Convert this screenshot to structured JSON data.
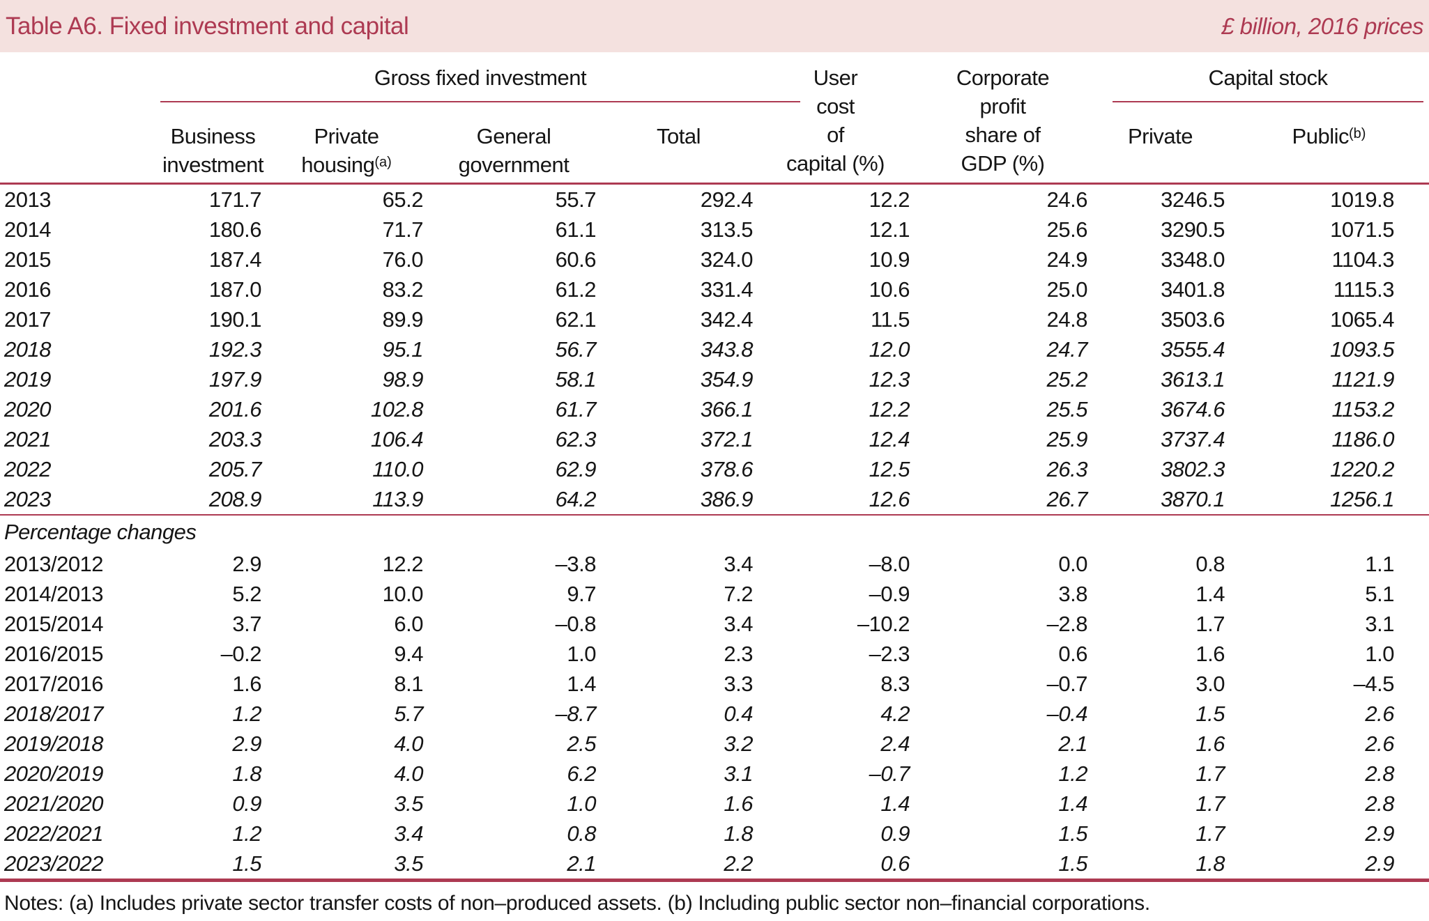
{
  "colors": {
    "crimson": "#ad3a52",
    "pink": "#f4e1df",
    "text": "#151515"
  },
  "banner": {
    "title": "Table A6. Fixed investment and capital",
    "units": "£ billion, 2016 prices"
  },
  "header": {
    "gfi_group": "Gross fixed investment",
    "capital_stock_group": "Capital stock",
    "user_cost_lines": [
      "User",
      "cost",
      "of",
      "capital (%)"
    ],
    "corporate_lines": [
      "Corporate",
      "profit",
      "share of",
      "GDP (%)"
    ],
    "business_lines": [
      "Business",
      "investment"
    ],
    "private_housing_lines": [
      "Private",
      "housing"
    ],
    "private_housing_sup": "(a)",
    "general_government_lines": [
      "General",
      "government"
    ],
    "total": "Total",
    "private": "Private",
    "public": "Public",
    "public_sup": "(b)"
  },
  "table": {
    "section_label": "Percentage changes",
    "year_rows": [
      {
        "label": "2013",
        "italic": false,
        "values": [
          "171.7",
          "65.2",
          "55.7",
          "292.4",
          "12.2",
          "24.6",
          "3246.5",
          "1019.8"
        ]
      },
      {
        "label": "2014",
        "italic": false,
        "values": [
          "180.6",
          "71.7",
          "61.1",
          "313.5",
          "12.1",
          "25.6",
          "3290.5",
          "1071.5"
        ]
      },
      {
        "label": "2015",
        "italic": false,
        "values": [
          "187.4",
          "76.0",
          "60.6",
          "324.0",
          "10.9",
          "24.9",
          "3348.0",
          "1104.3"
        ]
      },
      {
        "label": "2016",
        "italic": false,
        "values": [
          "187.0",
          "83.2",
          "61.2",
          "331.4",
          "10.6",
          "25.0",
          "3401.8",
          "1115.3"
        ]
      },
      {
        "label": "2017",
        "italic": false,
        "values": [
          "190.1",
          "89.9",
          "62.1",
          "342.4",
          "11.5",
          "24.8",
          "3503.6",
          "1065.4"
        ]
      },
      {
        "label": "2018",
        "italic": true,
        "values": [
          "192.3",
          "95.1",
          "56.7",
          "343.8",
          "12.0",
          "24.7",
          "3555.4",
          "1093.5"
        ]
      },
      {
        "label": "2019",
        "italic": true,
        "values": [
          "197.9",
          "98.9",
          "58.1",
          "354.9",
          "12.3",
          "25.2",
          "3613.1",
          "1121.9"
        ]
      },
      {
        "label": "2020",
        "italic": true,
        "values": [
          "201.6",
          "102.8",
          "61.7",
          "366.1",
          "12.2",
          "25.5",
          "3674.6",
          "1153.2"
        ]
      },
      {
        "label": "2021",
        "italic": true,
        "values": [
          "203.3",
          "106.4",
          "62.3",
          "372.1",
          "12.4",
          "25.9",
          "3737.4",
          "1186.0"
        ]
      },
      {
        "label": "2022",
        "italic": true,
        "values": [
          "205.7",
          "110.0",
          "62.9",
          "378.6",
          "12.5",
          "26.3",
          "3802.3",
          "1220.2"
        ]
      },
      {
        "label": "2023",
        "italic": true,
        "values": [
          "208.9",
          "113.9",
          "64.2",
          "386.9",
          "12.6",
          "26.7",
          "3870.1",
          "1256.1"
        ]
      }
    ],
    "pct_rows": [
      {
        "label": "2013/2012",
        "italic": false,
        "values": [
          "2.9",
          "12.2",
          "–3.8",
          "3.4",
          "–8.0",
          "0.0",
          "0.8",
          "1.1"
        ]
      },
      {
        "label": "2014/2013",
        "italic": false,
        "values": [
          "5.2",
          "10.0",
          "9.7",
          "7.2",
          "–0.9",
          "3.8",
          "1.4",
          "5.1"
        ]
      },
      {
        "label": "2015/2014",
        "italic": false,
        "values": [
          "3.7",
          "6.0",
          "–0.8",
          "3.4",
          "–10.2",
          "–2.8",
          "1.7",
          "3.1"
        ]
      },
      {
        "label": "2016/2015",
        "italic": false,
        "values": [
          "–0.2",
          "9.4",
          "1.0",
          "2.3",
          "–2.3",
          "0.6",
          "1.6",
          "1.0"
        ]
      },
      {
        "label": "2017/2016",
        "italic": false,
        "values": [
          "1.6",
          "8.1",
          "1.4",
          "3.3",
          "8.3",
          "–0.7",
          "3.0",
          "–4.5"
        ]
      },
      {
        "label": "2018/2017",
        "italic": true,
        "values": [
          "1.2",
          "5.7",
          "–8.7",
          "0.4",
          "4.2",
          "–0.4",
          "1.5",
          "2.6"
        ]
      },
      {
        "label": "2019/2018",
        "italic": true,
        "values": [
          "2.9",
          "4.0",
          "2.5",
          "3.2",
          "2.4",
          "2.1",
          "1.6",
          "2.6"
        ]
      },
      {
        "label": "2020/2019",
        "italic": true,
        "values": [
          "1.8",
          "4.0",
          "6.2",
          "3.1",
          "–0.7",
          "1.2",
          "1.7",
          "2.8"
        ]
      },
      {
        "label": "2021/2020",
        "italic": true,
        "values": [
          "0.9",
          "3.5",
          "1.0",
          "1.6",
          "1.4",
          "1.4",
          "1.7",
          "2.8"
        ]
      },
      {
        "label": "2022/2021",
        "italic": true,
        "values": [
          "1.2",
          "3.4",
          "0.8",
          "1.8",
          "0.9",
          "1.5",
          "1.7",
          "2.9"
        ]
      },
      {
        "label": "2023/2022",
        "italic": true,
        "values": [
          "1.5",
          "3.5",
          "2.1",
          "2.2",
          "0.6",
          "1.5",
          "1.8",
          "2.9"
        ]
      }
    ]
  },
  "notes": {
    "text": "Notes: (a) Includes private sector transfer costs of non–produced assets. (b) Including public sector non–financial corporations."
  }
}
